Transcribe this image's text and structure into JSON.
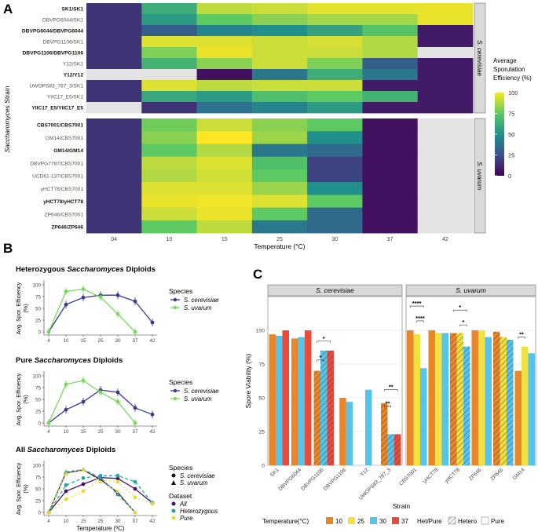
{
  "panel_labels": {
    "a": "A",
    "b": "B",
    "c": "C"
  },
  "chart_data": [
    {
      "id": "A",
      "type": "heatmap",
      "ylabel": "Saccharomyces Strain",
      "xlabel": "Temperature (°C)",
      "x_categories": [
        "04",
        "10",
        "15",
        "25",
        "30",
        "37",
        "42"
      ],
      "legend_title_lines": [
        "Average",
        "Sporulation",
        "Efficiency (%)"
      ],
      "legend_ticks": [
        0,
        25,
        50,
        75,
        100
      ],
      "facets": [
        {
          "label": "S. cerevisiae",
          "rows": [
            {
              "strain": "SK1/SK1",
              "bold": true,
              "values": [
                15,
                62,
                90,
                92,
                96,
                96,
                97
              ]
            },
            {
              "strain": "DBVPG6044/SK1",
              "bold": false,
              "values": [
                15,
                55,
                75,
                82,
                86,
                86,
                97
              ]
            },
            {
              "strain": "DBVPG6044/DBVPG6044",
              "bold": true,
              "values": [
                15,
                30,
                45,
                50,
                58,
                72,
                8
              ]
            },
            {
              "strain": "DBVPG1106/SK1",
              "bold": false,
              "values": [
                15,
                95,
                95,
                92,
                94,
                88,
                8
              ]
            },
            {
              "strain": "DBVPG1106/DBVPG1106",
              "bold": true,
              "values": [
                15,
                80,
                97,
                92,
                92,
                88,
                null
              ]
            },
            {
              "strain": "Y12/SK1",
              "bold": false,
              "values": [
                15,
                65,
                82,
                92,
                80,
                30,
                8
              ]
            },
            {
              "strain": "Y12/Y12",
              "bold": true,
              "values": [
                null,
                null,
                5,
                40,
                62,
                40,
                8
              ]
            },
            {
              "strain": "UWOPS83_787_3/SK1",
              "bold": false,
              "values": [
                15,
                95,
                90,
                92,
                92,
                8,
                8
              ]
            },
            {
              "strain": "YIIC17_E5/SK1",
              "bold": false,
              "values": [
                15,
                60,
                55,
                70,
                75,
                65,
                8
              ]
            },
            {
              "strain": "YIIC17_E5/YIIC17_E5",
              "bold": true,
              "values": [
                null,
                15,
                38,
                45,
                55,
                8,
                8
              ]
            }
          ]
        },
        {
          "label": "S. uvarum",
          "rows": [
            {
              "strain": "CBS7001/CBS7001",
              "bold": true,
              "values": [
                15,
                78,
                92,
                82,
                75,
                5,
                null
              ]
            },
            {
              "strain": "GM14/CBS7001",
              "bold": false,
              "values": [
                15,
                82,
                100,
                85,
                50,
                5,
                null
              ]
            },
            {
              "strain": "GM14/GM14",
              "bold": true,
              "values": [
                15,
                75,
                88,
                40,
                35,
                5,
                null
              ]
            },
            {
              "strain": "DBVPG7787/CBS7001",
              "bold": false,
              "values": [
                15,
                90,
                95,
                70,
                20,
                5,
                null
              ]
            },
            {
              "strain": "UCD61-137/CBS7001",
              "bold": false,
              "values": [
                15,
                88,
                93,
                75,
                20,
                5,
                null
              ]
            },
            {
              "strain": "yHCT78/CBS7001",
              "bold": false,
              "values": [
                15,
                95,
                95,
                85,
                50,
                5,
                null
              ]
            },
            {
              "strain": "yHCT78/yHCT78",
              "bold": true,
              "values": [
                15,
                97,
                98,
                95,
                75,
                5,
                null
              ]
            },
            {
              "strain": "ZP646/CBS7001",
              "bold": false,
              "values": [
                15,
                92,
                97,
                75,
                35,
                5,
                null
              ]
            },
            {
              "strain": "ZP646/ZP646",
              "bold": true,
              "values": [
                15,
                75,
                90,
                40,
                35,
                5,
                null
              ]
            }
          ]
        }
      ]
    },
    {
      "id": "B1",
      "type": "line",
      "title_parts": [
        "Heterozygous ",
        "Saccharomyces",
        " Diploids"
      ],
      "ylabel_lines": [
        "Avg. Spor. Efficiency",
        "(%)"
      ],
      "x": [
        4,
        10,
        15,
        25,
        30,
        37,
        42
      ],
      "ylim": [
        0,
        100
      ],
      "yticks": [
        0,
        25,
        50,
        75,
        100
      ],
      "legend_title": "Species",
      "series": [
        {
          "name": "S. cerevisiae",
          "color": "#3b3a8f",
          "values": [
            0,
            58,
            73,
            78,
            78,
            65,
            20
          ]
        },
        {
          "name": "S. uvarum",
          "color": "#79d861",
          "values": [
            0,
            86,
            91,
            74,
            38,
            0,
            null
          ]
        }
      ]
    },
    {
      "id": "B2",
      "type": "line",
      "title_parts": [
        "Pure ",
        "Saccharomyces",
        " Diploids"
      ],
      "ylabel_lines": [
        "Avg. Spor. Efficiency",
        "(%)"
      ],
      "x": [
        4,
        10,
        15,
        25,
        30,
        37,
        42
      ],
      "ylim": [
        0,
        100
      ],
      "yticks": [
        0,
        25,
        50,
        75,
        100
      ],
      "legend_title": "Species",
      "series": [
        {
          "name": "S. cerevisiae",
          "color": "#3b3a8f",
          "values": [
            0,
            28,
            45,
            70,
            65,
            32,
            18
          ]
        },
        {
          "name": "S. uvarum",
          "color": "#79d861",
          "values": [
            0,
            82,
            90,
            65,
            45,
            0,
            null
          ]
        }
      ]
    },
    {
      "id": "B3",
      "type": "line",
      "title_parts": [
        "All ",
        "Saccharomyces",
        " Diploids"
      ],
      "ylabel_lines": [
        "Avg. Spor. Efficiency",
        "(%)"
      ],
      "xlabel": "Temperature (ºC)",
      "x": [
        4,
        10,
        15,
        25,
        30,
        37,
        42
      ],
      "ylim": [
        0,
        100
      ],
      "yticks": [
        0,
        25,
        50,
        75,
        100
      ],
      "species_legend_title": "Species",
      "species_legend": [
        {
          "name": "S. cerevisiae",
          "shape": "circle"
        },
        {
          "name": "S. uvarum",
          "shape": "triangle"
        }
      ],
      "dataset_legend_title": "Dataset",
      "dataset_legend": [
        {
          "name": "All",
          "color": "#44136b"
        },
        {
          "name": "Heterozygous",
          "color": "#28a3a0"
        },
        {
          "name": "Pure",
          "color": "#e8d93a"
        }
      ],
      "series": [
        {
          "species": "S. cerevisiae",
          "dataset": "All",
          "shape": "circle",
          "color": "#44136b",
          "dash": "0",
          "values": [
            0,
            45,
            60,
            74,
            72,
            50,
            20
          ]
        },
        {
          "species": "S. cerevisiae",
          "dataset": "Heterozygous",
          "shape": "circle",
          "color": "#28a3a0",
          "dash": "4,3",
          "values": [
            0,
            58,
            73,
            78,
            78,
            65,
            20
          ]
        },
        {
          "species": "S. cerevisiae",
          "dataset": "Pure",
          "shape": "circle",
          "color": "#e8d93a",
          "dash": "2,3",
          "values": [
            0,
            28,
            45,
            70,
            65,
            32,
            18
          ]
        },
        {
          "species": "S. uvarum",
          "dataset": "All",
          "shape": "triangle",
          "color": "#44136b",
          "dash": "0",
          "values": [
            0,
            84,
            90,
            70,
            42,
            0,
            null
          ]
        },
        {
          "species": "S. uvarum",
          "dataset": "Heterozygous",
          "shape": "triangle",
          "color": "#28a3a0",
          "dash": "4,3",
          "values": [
            0,
            86,
            91,
            74,
            38,
            0,
            null
          ]
        },
        {
          "species": "S. uvarum",
          "dataset": "Pure",
          "shape": "triangle",
          "color": "#e8d93a",
          "dash": "2,3",
          "values": [
            0,
            82,
            90,
            65,
            45,
            0,
            null
          ]
        }
      ]
    },
    {
      "id": "C",
      "type": "bar",
      "ylabel": "Spore Viability (%)",
      "xlabel": "Strain",
      "ylim": [
        0,
        125
      ],
      "yticks": [
        0,
        25,
        50,
        75,
        100
      ],
      "temperature_legend_title": "Temperature(°C)",
      "temperatures": [
        {
          "label": "10",
          "color": "#e8862a"
        },
        {
          "label": "25",
          "color": "#f0e040"
        },
        {
          "label": "30",
          "color": "#56c4ea"
        },
        {
          "label": "37",
          "color": "#e84b3c"
        }
      ],
      "type_legend_title": "Het/Pure",
      "type_legend": [
        {
          "label": "Hetero",
          "hatched": true
        },
        {
          "label": "Pure",
          "hatched": false
        }
      ],
      "facets": [
        {
          "label": "S. cerevisiae",
          "groups": [
            {
              "strain": "SK1",
              "bars": [
                {
                  "temp": "10",
                  "value": 97,
                  "hatched": false
                },
                {
                  "temp": "30",
                  "value": 96,
                  "hatched": false
                },
                {
                  "temp": "37",
                  "value": 100,
                  "hatched": false
                }
              ]
            },
            {
              "strain": "DBVPG6044",
              "bars": [
                {
                  "temp": "10",
                  "value": 94,
                  "hatched": false
                },
                {
                  "temp": "30",
                  "value": 95,
                  "hatched": false
                },
                {
                  "temp": "37",
                  "value": 100,
                  "hatched": false
                }
              ]
            },
            {
              "strain": "DBVPG1106",
              "bars": [
                {
                  "temp": "10",
                  "value": 70,
                  "hatched": true
                },
                {
                  "temp": "30",
                  "value": 85,
                  "hatched": true
                },
                {
                  "temp": "37",
                  "value": 85,
                  "hatched": true
                }
              ]
            },
            {
              "strain": "DBVPG1106",
              "bars": [
                {
                  "temp": "10",
                  "value": 50,
                  "hatched": false
                },
                {
                  "temp": "30",
                  "value": 47,
                  "hatched": false
                }
              ]
            },
            {
              "strain": "Y12",
              "bars": [
                {
                  "temp": "30",
                  "value": 56,
                  "hatched": false
                }
              ]
            },
            {
              "strain": "UWOPS83_787_3",
              "bars": [
                {
                  "temp": "10",
                  "value": 46,
                  "hatched": true
                },
                {
                  "temp": "30",
                  "value": 23,
                  "hatched": true
                },
                {
                  "temp": "37",
                  "value": 23,
                  "hatched": true
                }
              ]
            }
          ],
          "significance": [
            {
              "group": 2,
              "from": 0,
              "to": 2,
              "label": "*",
              "value": 92
            },
            {
              "group": 2,
              "from": 0,
              "to": 1,
              "label": "*",
              "value": 78
            },
            {
              "group": 5,
              "from": 0,
              "to": 2,
              "label": "**",
              "value": 56
            },
            {
              "group": 5,
              "from": 0,
              "to": 1,
              "label": "**",
              "value": 44
            }
          ]
        },
        {
          "label": "S. uvarum",
          "groups": [
            {
              "strain": "CBS7001",
              "bars": [
                {
                  "temp": "10",
                  "value": 100,
                  "hatched": false
                },
                {
                  "temp": "25",
                  "value": 97,
                  "hatched": false
                },
                {
                  "temp": "30",
                  "value": 72,
                  "hatched": false
                }
              ]
            },
            {
              "strain": "yHCT78",
              "bars": [
                {
                  "temp": "10",
                  "value": 100,
                  "hatched": false
                },
                {
                  "temp": "25",
                  "value": 98,
                  "hatched": false
                },
                {
                  "temp": "30",
                  "value": 98,
                  "hatched": false
                }
              ]
            },
            {
              "strain": "yHCT78",
              "bars": [
                {
                  "temp": "10",
                  "value": 98,
                  "hatched": true
                },
                {
                  "temp": "25",
                  "value": 98,
                  "hatched": true
                },
                {
                  "temp": "30",
                  "value": 88,
                  "hatched": true
                }
              ]
            },
            {
              "strain": "ZP646",
              "bars": [
                {
                  "temp": "10",
                  "value": 100,
                  "hatched": false
                },
                {
                  "temp": "25",
                  "value": 100,
                  "hatched": false
                },
                {
                  "temp": "30",
                  "value": 95,
                  "hatched": false
                }
              ]
            },
            {
              "strain": "ZP646",
              "bars": [
                {
                  "temp": "10",
                  "value": 99,
                  "hatched": true
                },
                {
                  "temp": "25",
                  "value": 95,
                  "hatched": true
                },
                {
                  "temp": "30",
                  "value": 93,
                  "hatched": true
                }
              ]
            },
            {
              "strain": "GM14",
              "bars": [
                {
                  "temp": "10",
                  "value": 70,
                  "hatched": false
                },
                {
                  "temp": "25",
                  "value": 88,
                  "hatched": false
                },
                {
                  "temp": "30",
                  "value": 83,
                  "hatched": false
                }
              ]
            }
          ],
          "significance": [
            {
              "group": 0,
              "from": 0,
              "to": 2,
              "label": "****",
              "value": 118
            },
            {
              "group": 0,
              "from": 1,
              "to": 2,
              "label": "****",
              "value": 107
            },
            {
              "group": 2,
              "from": 0,
              "to": 2,
              "label": "*",
              "value": 115
            },
            {
              "group": 2,
              "from": 1,
              "to": 2,
              "label": "*",
              "value": 104
            },
            {
              "group": 5,
              "from": 0,
              "to": 1,
              "label": "**",
              "value": 95
            }
          ]
        }
      ]
    }
  ]
}
